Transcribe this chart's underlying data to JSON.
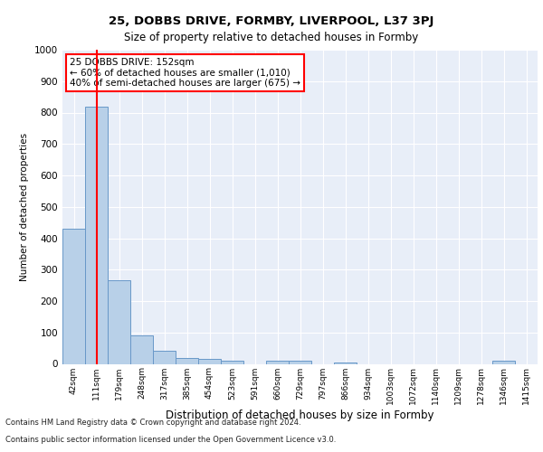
{
  "title": "25, DOBBS DRIVE, FORMBY, LIVERPOOL, L37 3PJ",
  "subtitle": "Size of property relative to detached houses in Formby",
  "xlabel": "Distribution of detached houses by size in Formby",
  "ylabel": "Number of detached properties",
  "categories": [
    "42sqm",
    "111sqm",
    "179sqm",
    "248sqm",
    "317sqm",
    "385sqm",
    "454sqm",
    "523sqm",
    "591sqm",
    "660sqm",
    "729sqm",
    "797sqm",
    "866sqm",
    "934sqm",
    "1003sqm",
    "1072sqm",
    "1140sqm",
    "1209sqm",
    "1278sqm",
    "1346sqm",
    "1415sqm"
  ],
  "values": [
    430,
    820,
    265,
    90,
    43,
    20,
    15,
    10,
    0,
    10,
    10,
    0,
    5,
    0,
    0,
    0,
    0,
    0,
    0,
    10,
    0
  ],
  "bar_color": "#b8d0e8",
  "bar_edge_color": "#6898c8",
  "red_line_x": 1,
  "annotation_text": "25 DOBBS DRIVE: 152sqm\n← 60% of detached houses are smaller (1,010)\n40% of semi-detached houses are larger (675) →",
  "ylim": [
    0,
    1000
  ],
  "yticks": [
    0,
    100,
    200,
    300,
    400,
    500,
    600,
    700,
    800,
    900,
    1000
  ],
  "footer_line1": "Contains HM Land Registry data © Crown copyright and database right 2024.",
  "footer_line2": "Contains public sector information licensed under the Open Government Licence v3.0.",
  "plot_bg_color": "#e8eef8"
}
